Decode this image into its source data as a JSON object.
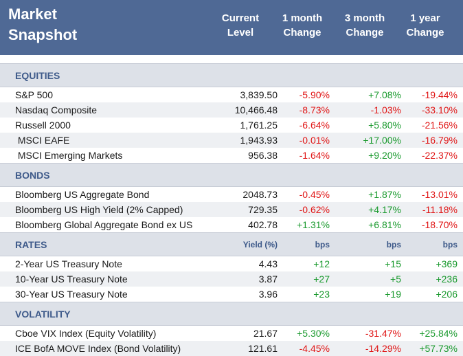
{
  "header": {
    "title_line1": "Market",
    "title_line2": "Snapshot",
    "col_level_1": "Current",
    "col_level_2": "Level",
    "col_m1_1": "1 month",
    "col_m1_2": "Change",
    "col_m3_1": "3 month",
    "col_m3_2": "Change",
    "col_y1_1": "1 year",
    "col_y1_2": "Change"
  },
  "sections": {
    "equities": {
      "label": "EQUITIES",
      "rows": [
        {
          "name": "S&P 500",
          "level": "3,839.50",
          "m1": "-5.90%",
          "m3": "+7.08%",
          "y1": "-19.44%"
        },
        {
          "name": "Nasdaq Composite",
          "level": "10,466.48",
          "m1": "-8.73%",
          "m3": "-1.03%",
          "y1": "-33.10%"
        },
        {
          "name": "Russell 2000",
          "level": "1,761.25",
          "m1": "-6.64%",
          "m3": "+5.80%",
          "y1": "-21.56%"
        },
        {
          "name": " MSCI EAFE",
          "level": "1,943.93",
          "m1": "-0.01%",
          "m3": "+17.00%",
          "y1": "-16.79%"
        },
        {
          "name": " MSCI Emerging Markets",
          "level": "956.38",
          "m1": "-1.64%",
          "m3": "+9.20%",
          "y1": "-22.37%"
        }
      ]
    },
    "bonds": {
      "label": "BONDS",
      "rows": [
        {
          "name": "Bloomberg US Aggregate Bond",
          "level": "2048.73",
          "m1": "-0.45%",
          "m3": "+1.87%",
          "y1": "-13.01%"
        },
        {
          "name": "Bloomberg US High Yield (2% Capped)",
          "level": "729.35",
          "m1": "-0.62%",
          "m3": "+4.17%",
          "y1": "-11.18%"
        },
        {
          "name": "Bloomberg Global Aggregate Bond ex US",
          "level": "402.78",
          "m1": "+1.31%",
          "m3": "+6.81%",
          "y1": "-18.70%"
        }
      ]
    },
    "rates": {
      "label": "RATES",
      "unit_level": "Yield (%)",
      "unit_m1": "bps",
      "unit_m3": "bps",
      "unit_y1": "bps",
      "rows": [
        {
          "name": "2-Year US Treasury Note",
          "level": "4.43",
          "m1": "+12",
          "m3": "+15",
          "y1": "+369"
        },
        {
          "name": "10-Year US Treasury Note",
          "level": "3.87",
          "m1": "+27",
          "m3": "+5",
          "y1": "+236"
        },
        {
          "name": "30-Year US Treasury Note",
          "level": "3.96",
          "m1": "+23",
          "m3": "+19",
          "y1": "+206"
        }
      ]
    },
    "volatility": {
      "label": "VOLATILITY",
      "rows": [
        {
          "name": "Cboe VIX Index (Equity Volatility)",
          "level": "21.67",
          "m1": "+5.30%",
          "m3": "-31.47%",
          "y1": "+25.84%"
        },
        {
          "name": "ICE BofA MOVE Index (Bond Volatility)",
          "level": "121.61",
          "m1": "-4.45%",
          "m3": "-14.29%",
          "y1": "+57.73%"
        }
      ]
    }
  },
  "colors": {
    "header_bg": "#4f6995",
    "section_bg": "#dde1e8",
    "section_text": "#3e5a8a",
    "negative": "#e01515",
    "positive": "#1a9a2e"
  }
}
